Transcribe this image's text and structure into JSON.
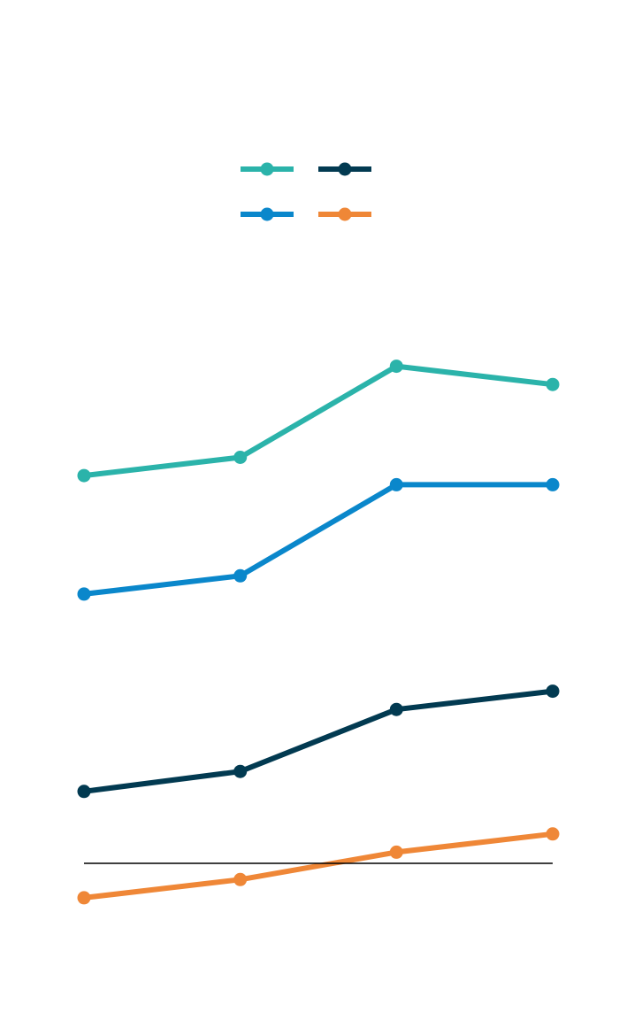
{
  "chart_data": {
    "type": "line",
    "x": [
      1,
      2,
      3,
      4
    ],
    "ylim": [
      0,
      100
    ],
    "legend_position": "top-center",
    "grid": false,
    "series": [
      {
        "key": "teal",
        "color": "#2bb3aa",
        "values": [
          65.0,
          68.0,
          83.0,
          80.0
        ]
      },
      {
        "key": "navy",
        "color": "#023a51",
        "values": [
          13.0,
          16.3,
          26.5,
          29.5
        ]
      },
      {
        "key": "blue",
        "color": "#0a87cb",
        "values": [
          45.5,
          48.5,
          63.5,
          63.5
        ]
      },
      {
        "key": "orange",
        "color": "#ef8737",
        "values": [
          -4.5,
          -1.5,
          3.0,
          6.0
        ]
      }
    ]
  }
}
